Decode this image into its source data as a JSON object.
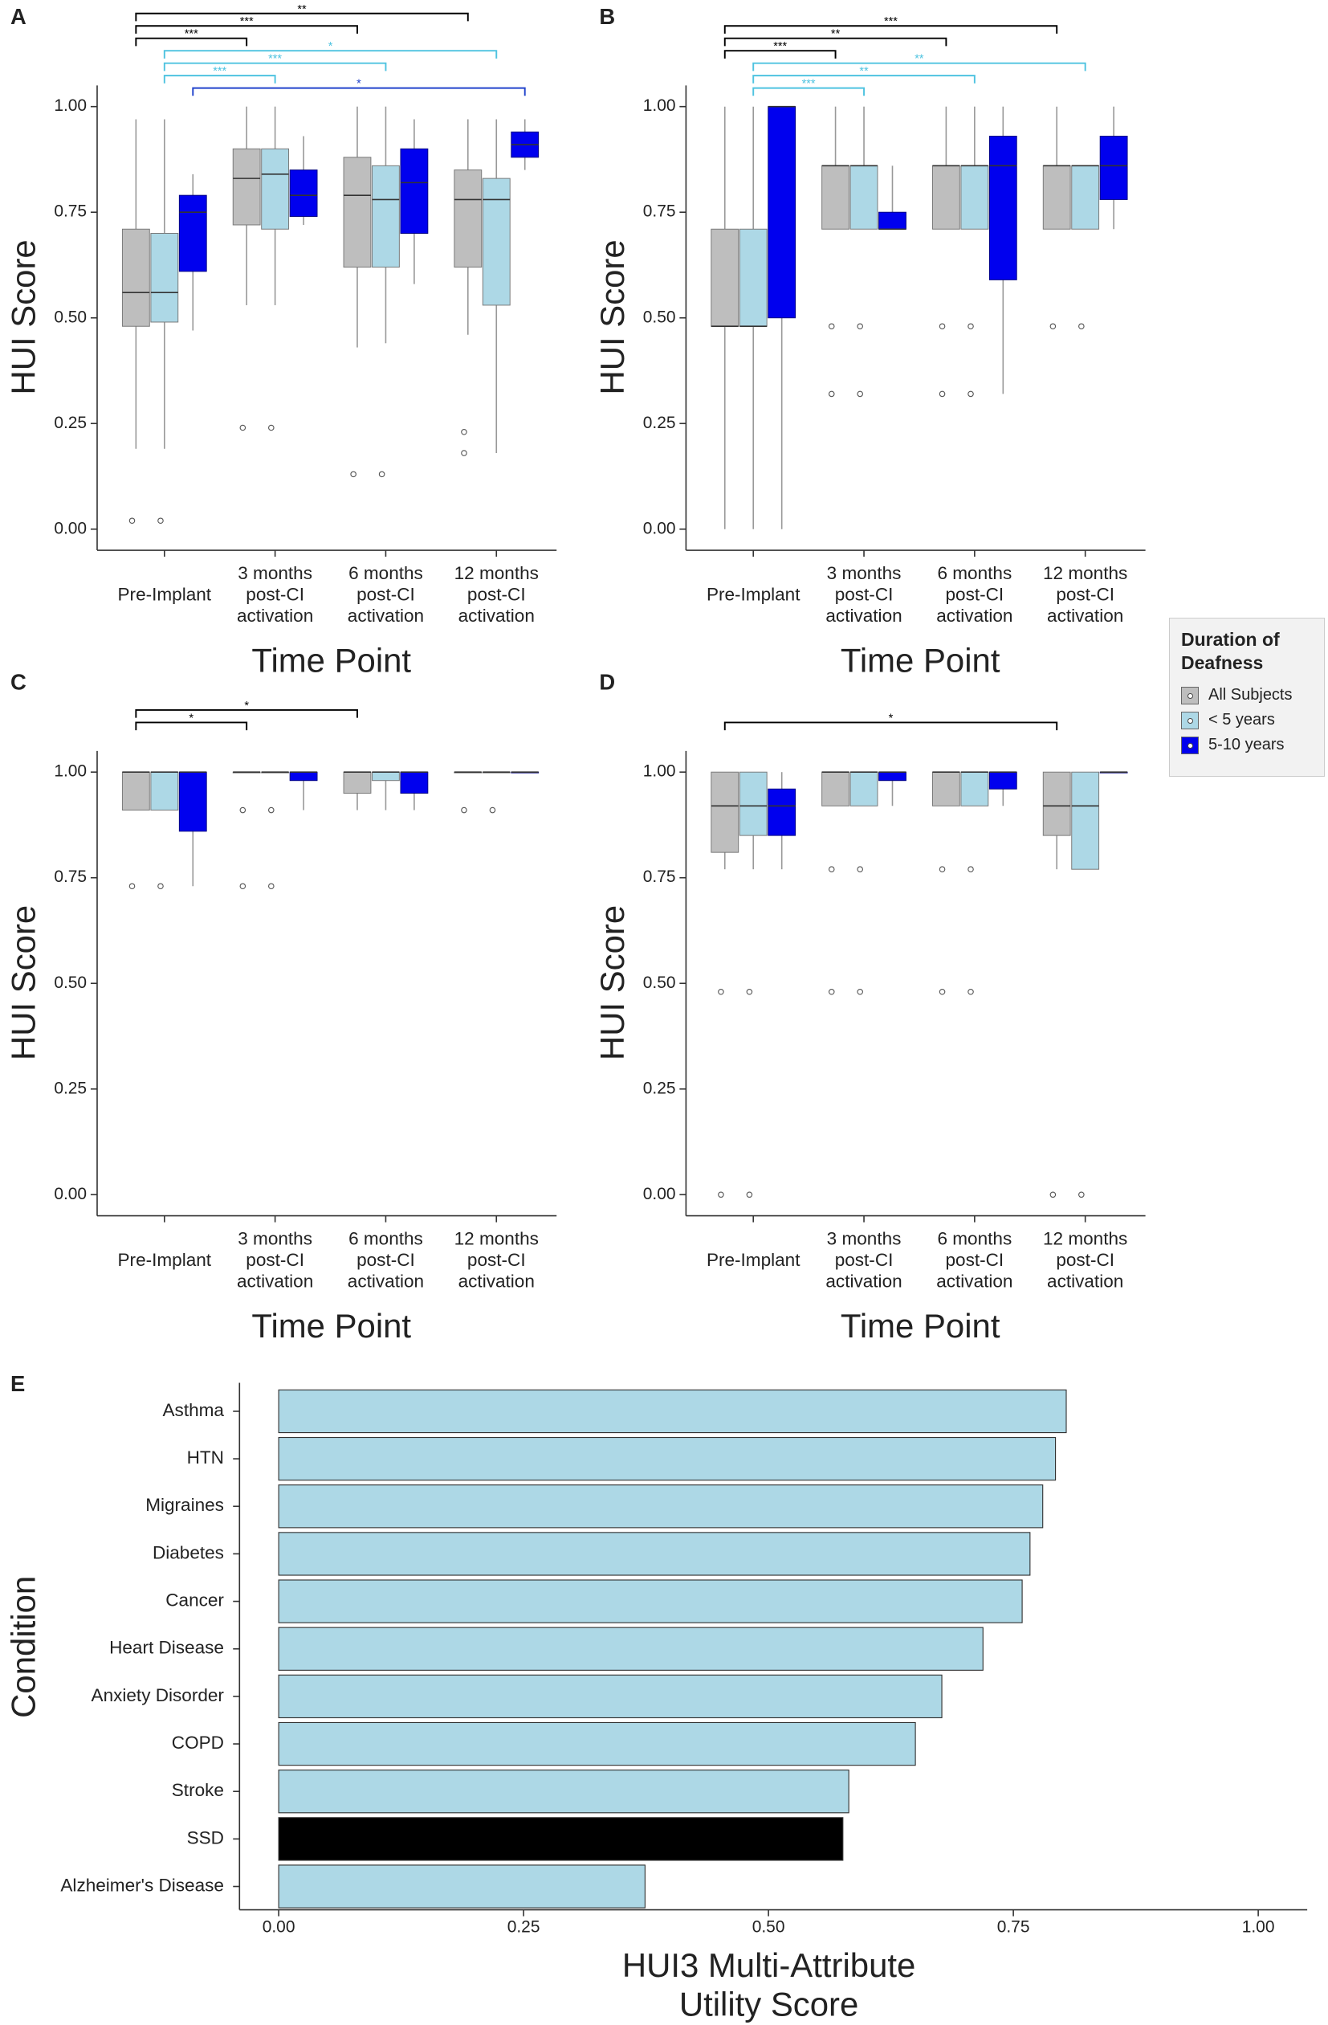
{
  "chart_data": [
    {
      "type": "box",
      "panel": "A",
      "ylabel": "HUI Score",
      "xlabel": "Time Point",
      "legend_title": "Duration of Deafness",
      "categories": [
        [
          "Pre-Implant"
        ],
        [
          "3 months",
          "post-CI",
          "activation"
        ],
        [
          "6 months",
          "post-CI",
          "activation"
        ],
        [
          "12 months",
          "post-CI",
          "activation"
        ]
      ],
      "ylim": [
        -0.05,
        1.05
      ],
      "yticks": [
        {
          "value": 0,
          "label": "0.00"
        },
        {
          "value": 0.25,
          "label": "0.25"
        },
        {
          "value": 0.5,
          "label": "0.50"
        },
        {
          "value": 0.75,
          "label": "0.75"
        },
        {
          "value": 1,
          "label": "1.00"
        }
      ],
      "series": [
        {
          "name": "All Subjects",
          "color": "#bebebe",
          "boxes": [
            {
              "min": 0.19,
              "q1": 0.48,
              "median": 0.56,
              "q3": 0.71,
              "max": 0.97,
              "outliers": [
                0.02
              ]
            },
            {
              "min": 0.53,
              "q1": 0.72,
              "median": 0.83,
              "q3": 0.9,
              "max": 1,
              "outliers": [
                0.24
              ]
            },
            {
              "min": 0.43,
              "q1": 0.62,
              "median": 0.79,
              "q3": 0.88,
              "max": 1,
              "outliers": [
                0.13
              ]
            },
            {
              "min": 0.46,
              "q1": 0.62,
              "median": 0.78,
              "q3": 0.85,
              "max": 0.97,
              "outliers": [
                0.23,
                0.18
              ]
            }
          ]
        },
        {
          "name": "< 5 years",
          "color": "#add8e6",
          "boxes": [
            {
              "min": 0.19,
              "q1": 0.49,
              "median": 0.56,
              "q3": 0.7,
              "max": 0.97,
              "outliers": [
                0.02
              ]
            },
            {
              "min": 0.53,
              "q1": 0.71,
              "median": 0.84,
              "q3": 0.9,
              "max": 1,
              "outliers": [
                0.24
              ]
            },
            {
              "min": 0.44,
              "q1": 0.62,
              "median": 0.78,
              "q3": 0.86,
              "max": 1,
              "outliers": [
                0.13
              ]
            },
            {
              "min": 0.18,
              "q1": 0.53,
              "median": 0.78,
              "q3": 0.83,
              "max": 0.97,
              "outliers": []
            }
          ]
        },
        {
          "name": "5-10 years",
          "color": "#0000ee",
          "boxes": [
            {
              "min": 0.47,
              "q1": 0.61,
              "median": 0.75,
              "q3": 0.79,
              "max": 0.84,
              "outliers": []
            },
            {
              "min": 0.72,
              "q1": 0.74,
              "median": 0.79,
              "q3": 0.85,
              "max": 0.93,
              "outliers": []
            },
            {
              "min": 0.58,
              "q1": 0.7,
              "median": 0.82,
              "q3": 0.9,
              "max": 0.97,
              "outliers": []
            },
            {
              "min": 0.85,
              "q1": 0.88,
              "median": 0.91,
              "q3": 0.94,
              "max": 0.97,
              "outliers": []
            }
          ]
        }
      ],
      "brackets": [
        {
          "series": 0,
          "from": 0,
          "to": 3,
          "label": "**",
          "color": "#000000"
        },
        {
          "series": 0,
          "from": 0,
          "to": 2,
          "label": "***",
          "color": "#000000"
        },
        {
          "series": 0,
          "from": 0,
          "to": 1,
          "label": "***",
          "color": "#000000"
        },
        {
          "series": 1,
          "from": 0,
          "to": 3,
          "label": "*",
          "color": "#4fc3e0"
        },
        {
          "series": 1,
          "from": 0,
          "to": 2,
          "label": "***",
          "color": "#4fc3e0"
        },
        {
          "series": 1,
          "from": 0,
          "to": 1,
          "label": "***",
          "color": "#4fc3e0"
        },
        {
          "series": 2,
          "from": 0,
          "to": 3,
          "label": "*",
          "color": "#2244cc"
        }
      ]
    },
    {
      "type": "box",
      "panel": "B",
      "ylabel": "HUI Score",
      "xlabel": "Time Point",
      "categories": [
        [
          "Pre-Implant"
        ],
        [
          "3 months",
          "post-CI",
          "activation"
        ],
        [
          "6 months",
          "post-CI",
          "activation"
        ],
        [
          "12 months",
          "post-CI",
          "activation"
        ]
      ],
      "ylim": [
        -0.05,
        1.05
      ],
      "yticks": [
        {
          "value": 0,
          "label": "0.00"
        },
        {
          "value": 0.25,
          "label": "0.25"
        },
        {
          "value": 0.5,
          "label": "0.50"
        },
        {
          "value": 0.75,
          "label": "0.75"
        },
        {
          "value": 1,
          "label": "1.00"
        }
      ],
      "series": [
        {
          "name": "All Subjects",
          "color": "#bebebe",
          "boxes": [
            {
              "min": 0,
              "q1": 0.48,
              "median": 0.48,
              "q3": 0.71,
              "max": 1,
              "outliers": []
            },
            {
              "min": 0.71,
              "q1": 0.71,
              "median": 0.86,
              "q3": 0.86,
              "max": 1,
              "outliers": [
                0.48,
                0.32
              ]
            },
            {
              "min": 0.71,
              "q1": 0.71,
              "median": 0.86,
              "q3": 0.86,
              "max": 1,
              "outliers": [
                0.48,
                0.32
              ]
            },
            {
              "min": 0.71,
              "q1": 0.71,
              "median": 0.86,
              "q3": 0.86,
              "max": 1,
              "outliers": [
                0.48
              ]
            }
          ]
        },
        {
          "name": "< 5 years",
          "color": "#add8e6",
          "boxes": [
            {
              "min": 0,
              "q1": 0.48,
              "median": 0.48,
              "q3": 0.71,
              "max": 1,
              "outliers": []
            },
            {
              "min": 0.71,
              "q1": 0.71,
              "median": 0.86,
              "q3": 0.86,
              "max": 1,
              "outliers": [
                0.48,
                0.32
              ]
            },
            {
              "min": 0.71,
              "q1": 0.71,
              "median": 0.86,
              "q3": 0.86,
              "max": 1,
              "outliers": [
                0.48,
                0.32
              ]
            },
            {
              "min": 0.71,
              "q1": 0.71,
              "median": 0.86,
              "q3": 0.86,
              "max": 0.86,
              "outliers": [
                0.48
              ]
            }
          ]
        },
        {
          "name": "5-10 years",
          "color": "#0000ee",
          "boxes": [
            {
              "min": 0,
              "q1": 0.5,
              "median": 1,
              "q3": 1,
              "max": 1,
              "outliers": []
            },
            {
              "min": 0.71,
              "q1": 0.71,
              "median": 0.71,
              "q3": 0.75,
              "max": 0.86,
              "outliers": []
            },
            {
              "min": 0.32,
              "q1": 0.59,
              "median": 0.86,
              "q3": 0.93,
              "max": 1,
              "outliers": []
            },
            {
              "min": 0.71,
              "q1": 0.78,
              "median": 0.86,
              "q3": 0.93,
              "max": 1,
              "outliers": []
            }
          ]
        }
      ],
      "brackets": [
        {
          "series": 0,
          "from": 0,
          "to": 3,
          "label": "***",
          "color": "#000000"
        },
        {
          "series": 0,
          "from": 0,
          "to": 2,
          "label": "**",
          "color": "#000000"
        },
        {
          "series": 0,
          "from": 0,
          "to": 1,
          "label": "***",
          "color": "#000000"
        },
        {
          "series": 1,
          "from": 0,
          "to": 3,
          "label": "**",
          "color": "#4fc3e0"
        },
        {
          "series": 1,
          "from": 0,
          "to": 2,
          "label": "**",
          "color": "#4fc3e0"
        },
        {
          "series": 1,
          "from": 0,
          "to": 1,
          "label": "***",
          "color": "#4fc3e0"
        }
      ]
    },
    {
      "type": "box",
      "panel": "C",
      "ylabel": "HUI Score",
      "xlabel": "Time Point",
      "categories": [
        [
          "Pre-Implant"
        ],
        [
          "3 months",
          "post-CI",
          "activation"
        ],
        [
          "6 months",
          "post-CI",
          "activation"
        ],
        [
          "12 months",
          "post-CI",
          "activation"
        ]
      ],
      "ylim": [
        -0.05,
        1.05
      ],
      "yticks": [
        {
          "value": 0,
          "label": "0.00"
        },
        {
          "value": 0.25,
          "label": "0.25"
        },
        {
          "value": 0.5,
          "label": "0.50"
        },
        {
          "value": 0.75,
          "label": "0.75"
        },
        {
          "value": 1,
          "label": "1.00"
        }
      ],
      "series": [
        {
          "name": "All Subjects",
          "color": "#bebebe",
          "boxes": [
            {
              "min": 0.91,
              "q1": 0.91,
              "median": 1,
              "q3": 1,
              "max": 1,
              "outliers": [
                0.73
              ]
            },
            {
              "min": 1,
              "q1": 1,
              "median": 1,
              "q3": 1,
              "max": 1,
              "outliers": [
                0.91,
                0.73
              ]
            },
            {
              "min": 0.91,
              "q1": 0.95,
              "median": 1,
              "q3": 1,
              "max": 1,
              "outliers": []
            },
            {
              "min": 1,
              "q1": 1,
              "median": 1,
              "q3": 1,
              "max": 1,
              "outliers": [
                0.91
              ]
            }
          ]
        },
        {
          "name": "< 5 years",
          "color": "#add8e6",
          "boxes": [
            {
              "min": 0.91,
              "q1": 0.91,
              "median": 1,
              "q3": 1,
              "max": 1,
              "outliers": [
                0.73
              ]
            },
            {
              "min": 1,
              "q1": 1,
              "median": 1,
              "q3": 1,
              "max": 1,
              "outliers": [
                0.91,
                0.73
              ]
            },
            {
              "min": 0.91,
              "q1": 0.98,
              "median": 1,
              "q3": 1,
              "max": 1,
              "outliers": []
            },
            {
              "min": 1,
              "q1": 1,
              "median": 1,
              "q3": 1,
              "max": 1,
              "outliers": [
                0.91
              ]
            }
          ]
        },
        {
          "name": "5-10 years",
          "color": "#0000ee",
          "boxes": [
            {
              "min": 0.73,
              "q1": 0.86,
              "median": 1,
              "q3": 1,
              "max": 1,
              "outliers": []
            },
            {
              "min": 0.91,
              "q1": 0.98,
              "median": 1,
              "q3": 1,
              "max": 1,
              "outliers": []
            },
            {
              "min": 0.91,
              "q1": 0.95,
              "median": 1,
              "q3": 1,
              "max": 1,
              "outliers": []
            },
            {
              "min": 1,
              "q1": 1,
              "median": 1,
              "q3": 1,
              "max": 1,
              "outliers": []
            }
          ]
        }
      ],
      "brackets": [
        {
          "series": 0,
          "from": 0,
          "to": 2,
          "label": "*",
          "color": "#000000"
        },
        {
          "series": 0,
          "from": 0,
          "to": 1,
          "label": "*",
          "color": "#000000"
        }
      ]
    },
    {
      "type": "box",
      "panel": "D",
      "ylabel": "HUI Score",
      "xlabel": "Time Point",
      "categories": [
        [
          "Pre-Implant"
        ],
        [
          "3 months",
          "post-CI",
          "activation"
        ],
        [
          "6 months",
          "post-CI",
          "activation"
        ],
        [
          "12 months",
          "post-CI",
          "activation"
        ]
      ],
      "ylim": [
        -0.05,
        1.05
      ],
      "yticks": [
        {
          "value": 0,
          "label": "0.00"
        },
        {
          "value": 0.25,
          "label": "0.25"
        },
        {
          "value": 0.5,
          "label": "0.50"
        },
        {
          "value": 0.75,
          "label": "0.75"
        },
        {
          "value": 1,
          "label": "1.00"
        }
      ],
      "series": [
        {
          "name": "All Subjects",
          "color": "#bebebe",
          "boxes": [
            {
              "min": 0.77,
              "q1": 0.81,
              "median": 0.92,
              "q3": 1,
              "max": 1,
              "outliers": [
                0.48,
                0
              ]
            },
            {
              "min": 0.92,
              "q1": 0.92,
              "median": 1,
              "q3": 1,
              "max": 1,
              "outliers": [
                0.77,
                0.48
              ]
            },
            {
              "min": 0.92,
              "q1": 0.92,
              "median": 1,
              "q3": 1,
              "max": 1,
              "outliers": [
                0.77,
                0.48
              ]
            },
            {
              "min": 0.77,
              "q1": 0.85,
              "median": 0.92,
              "q3": 1,
              "max": 1,
              "outliers": [
                0
              ]
            }
          ]
        },
        {
          "name": "< 5 years",
          "color": "#add8e6",
          "boxes": [
            {
              "min": 0.77,
              "q1": 0.85,
              "median": 0.92,
              "q3": 1,
              "max": 1,
              "outliers": [
                0.48,
                0
              ]
            },
            {
              "min": 0.92,
              "q1": 0.92,
              "median": 1,
              "q3": 1,
              "max": 1,
              "outliers": [
                0.77,
                0.48
              ]
            },
            {
              "min": 0.92,
              "q1": 0.92,
              "median": 1,
              "q3": 1,
              "max": 1,
              "outliers": [
                0.77,
                0.48
              ]
            },
            {
              "min": 0.77,
              "q1": 0.77,
              "median": 0.92,
              "q3": 1,
              "max": 1,
              "outliers": [
                0
              ]
            }
          ]
        },
        {
          "name": "5-10 years",
          "color": "#0000ee",
          "boxes": [
            {
              "min": 0.77,
              "q1": 0.85,
              "median": 0.92,
              "q3": 0.96,
              "max": 1,
              "outliers": []
            },
            {
              "min": 0.92,
              "q1": 0.98,
              "median": 1,
              "q3": 1,
              "max": 1,
              "outliers": []
            },
            {
              "min": 0.92,
              "q1": 0.96,
              "median": 1,
              "q3": 1,
              "max": 1,
              "outliers": []
            },
            {
              "min": 1,
              "q1": 1,
              "median": 1,
              "q3": 1,
              "max": 1,
              "outliers": []
            }
          ]
        }
      ],
      "brackets": [
        {
          "series": 0,
          "from": 0,
          "to": 3,
          "label": "*",
          "color": "#000000"
        }
      ]
    },
    {
      "type": "barh",
      "panel": "E",
      "ylabel": "Condition",
      "xlabel": [
        "HUI3 Multi-Attribute",
        "Utility Score"
      ],
      "categories": [
        "Asthma",
        "HTN",
        "Migraines",
        "Diabetes",
        "Cancer",
        "Heart Disease",
        "Anxiety Disorder",
        "COPD",
        "Stroke",
        "SSD",
        "Alzheimer's Disease"
      ],
      "values": [
        0.804,
        0.793,
        0.78,
        0.767,
        0.759,
        0.719,
        0.677,
        0.65,
        0.582,
        0.576,
        0.374
      ],
      "colors": [
        "#add8e6",
        "#add8e6",
        "#add8e6",
        "#add8e6",
        "#add8e6",
        "#add8e6",
        "#add8e6",
        "#add8e6",
        "#add8e6",
        "#000000",
        "#add8e6"
      ],
      "xlim": [
        -0.04,
        1.05
      ],
      "xticks": [
        {
          "value": 0,
          "label": "0.00"
        },
        {
          "value": 0.25,
          "label": "0.25"
        },
        {
          "value": 0.5,
          "label": "0.50"
        },
        {
          "value": 0.75,
          "label": "0.75"
        },
        {
          "value": 1,
          "label": "1.00"
        }
      ]
    }
  ]
}
